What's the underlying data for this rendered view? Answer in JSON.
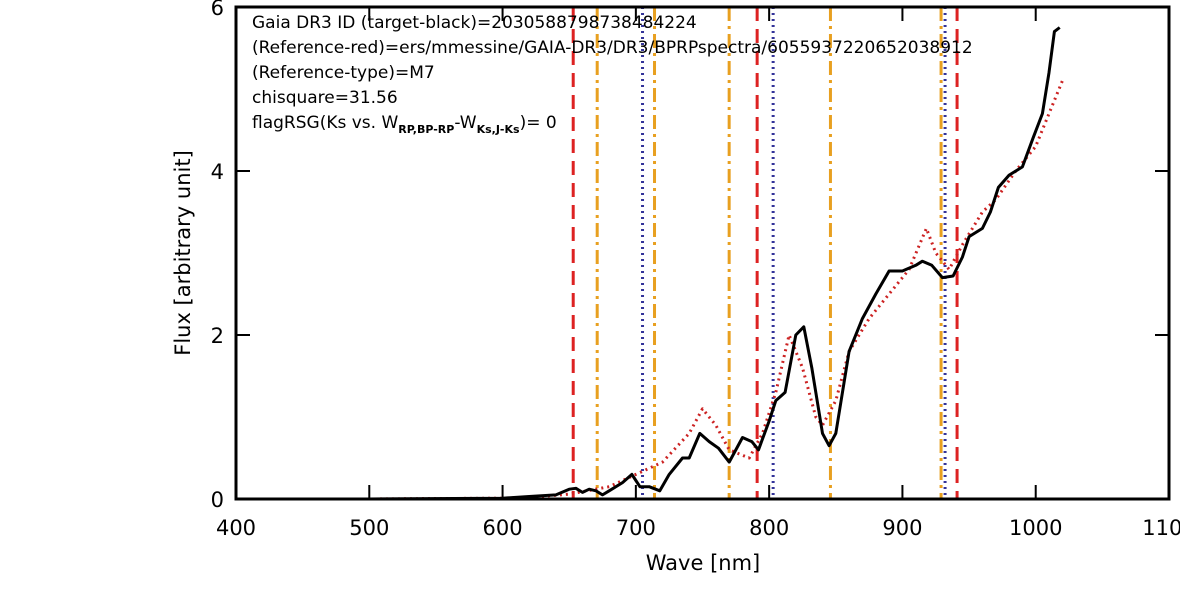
{
  "chart_data": {
    "type": "line",
    "xlabel": "Wave [nm]",
    "ylabel": "Flux [arbitrary unit]",
    "xlim": [
      400,
      1100
    ],
    "ylim": [
      0,
      6
    ],
    "xticks": [
      400,
      500,
      600,
      700,
      800,
      900,
      1000,
      1100
    ],
    "yticks": [
      0,
      2,
      4,
      6
    ],
    "annotations": [
      "Gaia DR3 ID (target-black)=2030588798738484224",
      "(Reference-red)=ers/mmessine/GAIA-DR3/DR3/BPRPspectra/6055937220652038912",
      "(Reference-type)=M7",
      "chisquare=31.56"
    ],
    "flag_annotation": [
      {
        "text": "flagRSG(Ks vs. W",
        "sub": false
      },
      {
        "text": "RP,BP-RP",
        "sub": true
      },
      {
        "text": "-W",
        "sub": false
      },
      {
        "text": "Ks,J-Ks",
        "sub": true
      },
      {
        "text": ")= 0",
        "sub": false
      }
    ],
    "vlines": [
      {
        "x": 653,
        "color": "#dd2222",
        "style": "dashed"
      },
      {
        "x": 791,
        "color": "#dd2222",
        "style": "dashed"
      },
      {
        "x": 941,
        "color": "#dd2222",
        "style": "dashed"
      },
      {
        "x": 671,
        "color": "#e8a020",
        "style": "dashdot"
      },
      {
        "x": 714,
        "color": "#e8a020",
        "style": "dashdot"
      },
      {
        "x": 770,
        "color": "#e8a020",
        "style": "dashdot"
      },
      {
        "x": 846,
        "color": "#e8a020",
        "style": "dashdot"
      },
      {
        "x": 929,
        "color": "#e8a020",
        "style": "dashdot"
      },
      {
        "x": 705,
        "color": "#333399",
        "style": "dotted"
      },
      {
        "x": 803,
        "color": "#333399",
        "style": "dotted"
      },
      {
        "x": 932,
        "color": "#333399",
        "style": "dotted"
      }
    ],
    "series": [
      {
        "color": "#cc2222",
        "style": "dotted",
        "x": [
          400,
          500,
          600,
          620,
          650,
          680,
          700,
          720,
          740,
          750,
          760,
          770,
          785,
          795,
          805,
          815,
          825,
          835,
          840,
          850,
          860,
          875,
          890,
          905,
          918,
          925,
          935,
          945,
          960,
          970,
          985,
          1000,
          1010,
          1020
        ],
        "values": [
          0,
          0,
          0.01,
          0.02,
          0.06,
          0.15,
          0.3,
          0.45,
          0.8,
          1.1,
          0.9,
          0.6,
          0.5,
          0.8,
          1.3,
          2.0,
          1.6,
          1.0,
          0.9,
          1.2,
          1.8,
          2.2,
          2.5,
          2.8,
          3.3,
          3.0,
          2.8,
          3.1,
          3.5,
          3.65,
          4.0,
          4.3,
          4.7,
          5.1
        ]
      },
      {
        "color": "#000000",
        "style": "solid",
        "x": [
          400,
          500,
          600,
          620,
          640,
          650,
          655,
          660,
          665,
          670,
          675,
          680,
          690,
          697,
          703,
          710,
          718,
          725,
          735,
          740,
          748,
          755,
          762,
          770,
          780,
          787,
          792,
          800,
          805,
          812,
          820,
          826,
          832,
          840,
          845,
          850,
          860,
          870,
          880,
          890,
          900,
          910,
          915,
          922,
          930,
          938,
          945,
          950,
          960,
          966,
          972,
          980,
          990,
          998,
          1005,
          1010,
          1014,
          1018
        ],
        "values": [
          0,
          0,
          0.01,
          0.03,
          0.05,
          0.12,
          0.13,
          0.08,
          0.12,
          0.1,
          0.05,
          0.1,
          0.2,
          0.3,
          0.15,
          0.15,
          0.1,
          0.3,
          0.5,
          0.5,
          0.8,
          0.7,
          0.62,
          0.45,
          0.75,
          0.7,
          0.6,
          0.95,
          1.2,
          1.3,
          2.0,
          2.1,
          1.6,
          0.8,
          0.65,
          0.8,
          1.8,
          2.2,
          2.5,
          2.78,
          2.78,
          2.85,
          2.9,
          2.85,
          2.7,
          2.72,
          2.95,
          3.2,
          3.3,
          3.5,
          3.8,
          3.95,
          4.05,
          4.4,
          4.7,
          5.2,
          5.7,
          5.75
        ]
      }
    ]
  }
}
